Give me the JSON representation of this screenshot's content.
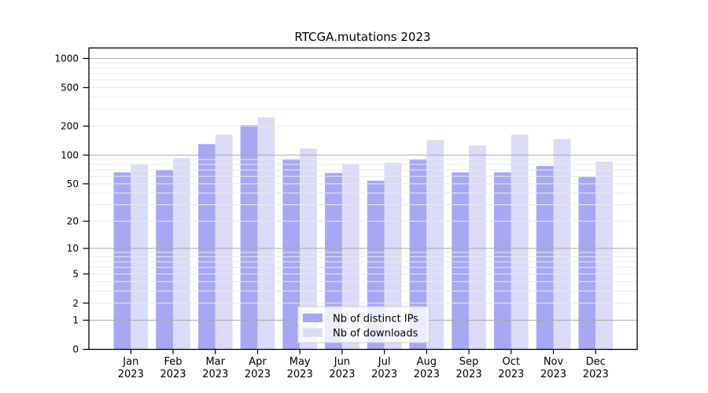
{
  "chart_data": {
    "type": "bar",
    "title": "RTCGA.mutations 2023",
    "x_categories": [
      "Jan",
      "Feb",
      "Mar",
      "Apr",
      "May",
      "Jun",
      "Jul",
      "Aug",
      "Sep",
      "Oct",
      "Nov",
      "Dec"
    ],
    "x_sublabel": "2023",
    "series": [
      {
        "name": "Nb of distinct IPs",
        "color": "#a7a7f3",
        "values": [
          66,
          70,
          130,
          205,
          91,
          65,
          54,
          91,
          66,
          66,
          77,
          59
        ]
      },
      {
        "name": "Nb of downloads",
        "color": "#dbdbf8",
        "values": [
          81,
          93,
          164,
          246,
          117,
          81,
          83,
          143,
          126,
          163,
          146,
          85
        ]
      }
    ],
    "y_ticks": [
      0,
      1,
      2,
      5,
      10,
      20,
      50,
      100,
      200,
      500,
      1000
    ],
    "y_minor_gridlines": [
      2,
      3,
      4,
      5,
      6,
      7,
      8,
      9,
      20,
      30,
      40,
      50,
      60,
      70,
      80,
      90,
      200,
      300,
      400,
      500,
      600,
      700,
      800,
      900
    ],
    "y_major_gridlines": [
      1,
      10,
      100,
      1000
    ],
    "y_scale": "log10(value+1)",
    "ylim": [
      0,
      1276
    ],
    "grid": true,
    "legend_position": "bottom-center",
    "colors": {
      "axis": "#000000",
      "grid_major": "#a8a8a8",
      "grid_minor": "#e9e9e9",
      "legend_border": "#c9c9c9",
      "legend_background": "#ffffff"
    }
  }
}
